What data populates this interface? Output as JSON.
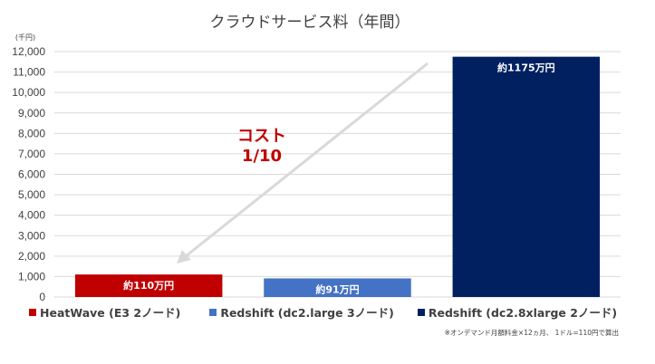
{
  "chart_data": {
    "type": "bar",
    "title": "クラウドサービス料（年間）",
    "unit_label": "(千円)",
    "categories": [
      "HeatWave (E3 2ノード)",
      "Redshift (dc2.large 3ノード)",
      "Redshift (dc2.8xlarge 2ノード)"
    ],
    "values": [
      1100,
      910,
      11750
    ],
    "bar_labels": [
      "約110万円",
      "約91万円",
      "約1175万円"
    ],
    "colors": [
      "#c00000",
      "#4472c4",
      "#002060"
    ],
    "ylim": [
      0,
      12000
    ],
    "yticks": [
      {
        "value": 0,
        "label": "0"
      },
      {
        "value": 1000,
        "label": "1,000"
      },
      {
        "value": 2000,
        "label": "2,000"
      },
      {
        "value": 3000,
        "label": "3,000"
      },
      {
        "value": 4000,
        "label": "4,000"
      },
      {
        "value": 5000,
        "label": "5,000"
      },
      {
        "value": 6000,
        "label": "6,000"
      },
      {
        "value": 7000,
        "label": "7,000"
      },
      {
        "value": 8000,
        "label": "8,000"
      },
      {
        "value": 9000,
        "label": "9,000"
      },
      {
        "value": 10000,
        "label": "10,000"
      },
      {
        "value": 11000,
        "label": "11,000"
      },
      {
        "value": 12000,
        "label": "12,000"
      }
    ],
    "grid": true,
    "legend_position": "bottom",
    "annotation": {
      "line1": "コスト",
      "line2": "1/10",
      "color": "#c00000"
    },
    "arrow_color": "#d9d9d9",
    "note": "※オンデマンド月額料金×12ヵ月、 1ドル=110円で算出"
  }
}
